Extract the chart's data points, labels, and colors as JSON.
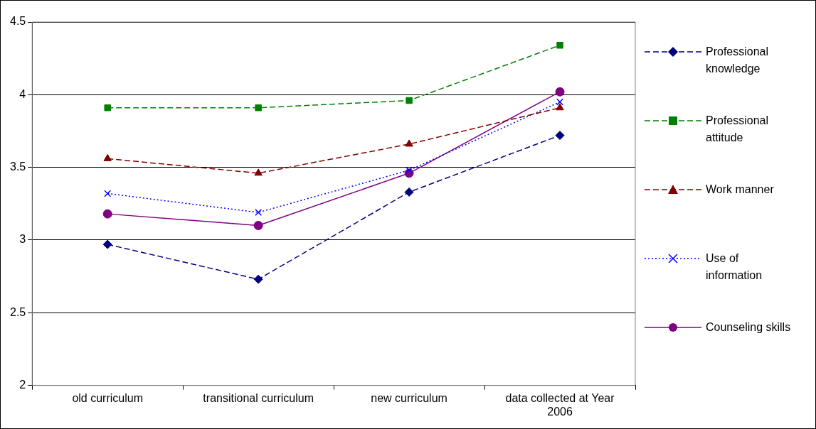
{
  "chart_data": {
    "type": "line",
    "categories": [
      "old curriculum",
      "transitional curriculum",
      "new curriculum",
      "data collected at Year 2006"
    ],
    "series": [
      {
        "name": "Professional knowledge",
        "color": "#000080",
        "marker": "diamond",
        "line_style": "dashed",
        "values": [
          2.97,
          2.73,
          3.33,
          3.72
        ]
      },
      {
        "name": "Professional attitude",
        "color": "#008000",
        "marker": "square",
        "line_style": "dashed",
        "values": [
          3.91,
          3.91,
          3.96,
          4.34
        ]
      },
      {
        "name": "Work manner",
        "color": "#800000",
        "marker": "triangle",
        "line_style": "dashed",
        "values": [
          3.56,
          3.46,
          3.66,
          3.91
        ]
      },
      {
        "name": "Use of information",
        "color": "#0000ff",
        "marker": "cross",
        "line_style": "dotted",
        "values": [
          3.32,
          3.19,
          3.48,
          3.95
        ]
      },
      {
        "name": "Counseling skills",
        "color": "#800080",
        "marker": "circle",
        "line_style": "solid",
        "values": [
          3.18,
          3.1,
          3.46,
          4.02
        ]
      }
    ],
    "ylim": [
      2,
      4.5
    ],
    "yticks": [
      2,
      2.5,
      3,
      3.5,
      4,
      4.5
    ],
    "grid": "y",
    "legend": "right"
  }
}
